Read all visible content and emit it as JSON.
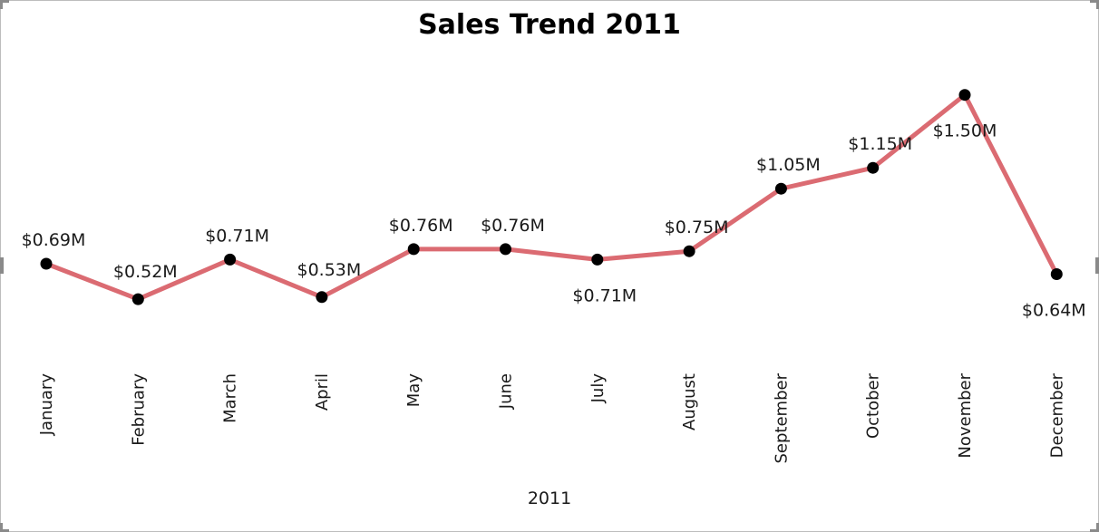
{
  "chart_data": {
    "type": "line",
    "title": "Sales Trend 2011",
    "xlabel": "2011",
    "ylabel": "",
    "categories": [
      "January",
      "February",
      "March",
      "April",
      "May",
      "June",
      "July",
      "August",
      "September",
      "October",
      "November",
      "December"
    ],
    "series": [
      {
        "values": [
          0.69,
          0.52,
          0.71,
          0.53,
          0.76,
          0.76,
          0.71,
          0.75,
          1.05,
          1.15,
          1.5,
          0.64
        ],
        "labels": [
          "$0.69M",
          "$0.52M",
          "$0.71M",
          "$0.53M",
          "$0.76M",
          "$0.76M",
          "$0.71M",
          "$0.75M",
          "$1.05M",
          "$1.15M",
          "$1.50M",
          "$0.64M"
        ]
      }
    ],
    "ylim": [
      0,
      1.6
    ],
    "grid": false,
    "legend": "none",
    "colors": {
      "line": "#db6b72",
      "marker": "#000000"
    }
  }
}
